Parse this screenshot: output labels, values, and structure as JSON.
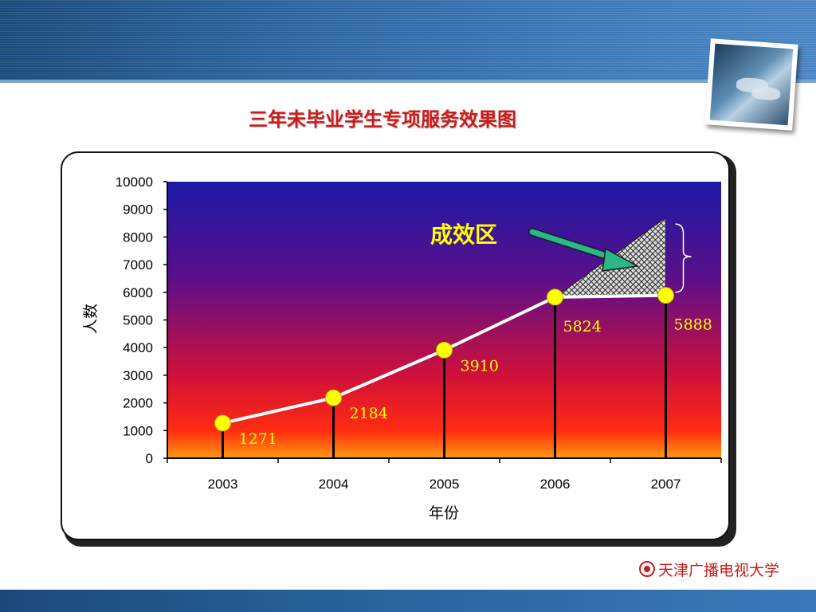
{
  "title": "三年未毕业学生专项服务效果图",
  "footer_logo_text": "天津广播电视大学",
  "colors": {
    "title": "#cc1a1a",
    "line": "#ffffff",
    "point": "#ffff00",
    "data_label": "#ffff00",
    "annotation": "#ffff00",
    "arrow": "#2ab88a"
  },
  "chart_data": {
    "type": "line",
    "x": [
      "2003",
      "2004",
      "2005",
      "2006",
      "2007"
    ],
    "series": [
      {
        "values": [
          1271,
          2184,
          3910,
          5824,
          5888
        ]
      }
    ],
    "data_labels": [
      "1271",
      "2184",
      "3910",
      "5824",
      "5888"
    ],
    "ylim": [
      0,
      10000
    ],
    "yticks": [
      "0",
      "1000",
      "2000",
      "3000",
      "4000",
      "5000",
      "6000",
      "7000",
      "8000",
      "9000",
      "10000"
    ],
    "xlabel": "年份",
    "ylabel": "人数",
    "annotation": {
      "text": "成效区",
      "region_from": "2006",
      "region_to": "2007",
      "region_top": 8700
    },
    "background": "gradient (blue top to red/orange bottom)",
    "grid": false
  }
}
